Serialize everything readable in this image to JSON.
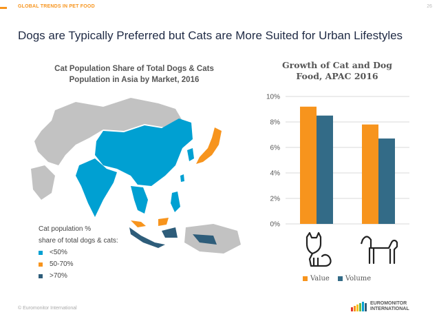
{
  "header": {
    "section_label": "GLOBAL TRENDS IN PET FOOD",
    "page_number": "26",
    "headline": "Dogs are Typically Preferred but Cats are More Suited for Urban Lifestyles"
  },
  "map": {
    "title_line1": "Cat Population Share of Total Dogs & Cats",
    "title_line2": "Population in Asia by Market, 2016",
    "legend_title_line1": "Cat population %",
    "legend_title_line2": "share of total dogs & cats:",
    "legend": [
      {
        "label": "<50%",
        "color": "#00a0d2"
      },
      {
        "label": "50-70%",
        "color": "#f7941d"
      },
      {
        "label": ">70%",
        "color": "#2e5d7a"
      }
    ]
  },
  "chart_data": {
    "type": "bar",
    "title": "Growth of Cat and Dog Food, APAC 2016",
    "categories": [
      "Cat",
      "Dog"
    ],
    "category_icons": [
      "cat-icon",
      "dog-icon"
    ],
    "series": [
      {
        "name": "Value",
        "color": "#f7941d",
        "values": [
          9.2,
          7.8
        ]
      },
      {
        "name": "Volume",
        "color": "#336b87",
        "values": [
          8.5,
          6.7
        ]
      }
    ],
    "ylim": [
      0,
      10
    ],
    "yticks": [
      "0%",
      "2%",
      "4%",
      "6%",
      "8%",
      "10%"
    ],
    "grid": true,
    "legend_position": "bottom"
  },
  "footer": {
    "copyright": "© Euromonitor International",
    "logo_line1": "EUROMONITOR",
    "logo_line2": "INTERNATIONAL"
  }
}
